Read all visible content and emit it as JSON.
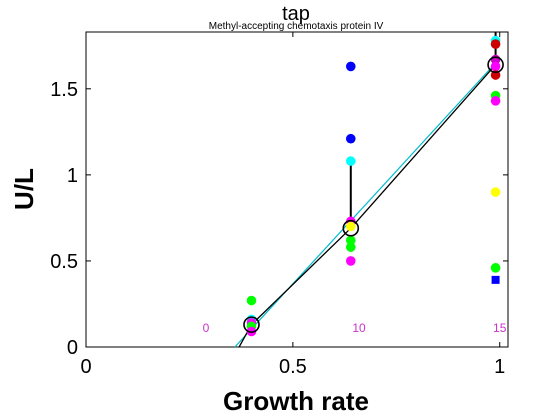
{
  "chart_data": {
    "type": "scatter",
    "title": "tap",
    "subtitle": "Methyl-accepting chemotaxis protein IV",
    "xlabel": "Growth rate",
    "ylabel": "U/L",
    "xlim": [
      0,
      1.02
    ],
    "ylim": [
      0,
      1.83
    ],
    "xticks": [
      {
        "value": 0,
        "label": "0"
      },
      {
        "value": 0.5,
        "label": "0.5"
      },
      {
        "value": 1,
        "label": "1"
      }
    ],
    "yticks": [
      {
        "value": 0,
        "label": "0"
      },
      {
        "value": 0.5,
        "label": "0.5"
      },
      {
        "value": 1,
        "label": "1"
      },
      {
        "value": 1.5,
        "label": "1.5"
      }
    ],
    "grid": false,
    "colors": {
      "blue": "#0000ff",
      "cyan": "#00ffff",
      "green": "#00ff00",
      "magenta": "#ff00ff",
      "yellow": "#ffff00",
      "red": "#cc0000",
      "purple": "#cc00cc",
      "fit_black": "#000000",
      "fit_cyan": "#00bbcc",
      "annotation": "#cc33cc"
    },
    "points": [
      {
        "x": 0.4,
        "y": 0.27,
        "color": "green"
      },
      {
        "x": 0.4,
        "y": 0.16,
        "color": "cyan"
      },
      {
        "x": 0.4,
        "y": 0.14,
        "color": "magenta"
      },
      {
        "x": 0.4,
        "y": 0.12,
        "color": "green"
      },
      {
        "x": 0.4,
        "y": 0.09,
        "color": "magenta"
      },
      {
        "x": 0.64,
        "y": 1.63,
        "color": "blue"
      },
      {
        "x": 0.64,
        "y": 1.21,
        "color": "blue"
      },
      {
        "x": 0.64,
        "y": 1.08,
        "color": "cyan"
      },
      {
        "x": 0.64,
        "y": 0.73,
        "color": "magenta"
      },
      {
        "x": 0.64,
        "y": 0.7,
        "color": "yellow"
      },
      {
        "x": 0.64,
        "y": 0.62,
        "color": "green"
      },
      {
        "x": 0.64,
        "y": 0.58,
        "color": "green"
      },
      {
        "x": 0.64,
        "y": 0.5,
        "color": "magenta"
      },
      {
        "x": 0.99,
        "y": 1.78,
        "color": "cyan"
      },
      {
        "x": 0.99,
        "y": 1.76,
        "color": "red"
      },
      {
        "x": 0.99,
        "y": 1.67,
        "color": "purple"
      },
      {
        "x": 0.99,
        "y": 1.63,
        "color": "magenta"
      },
      {
        "x": 0.99,
        "y": 1.58,
        "color": "red"
      },
      {
        "x": 0.99,
        "y": 1.46,
        "color": "green"
      },
      {
        "x": 0.99,
        "y": 1.43,
        "color": "magenta"
      },
      {
        "x": 0.99,
        "y": 0.9,
        "color": "yellow"
      },
      {
        "x": 0.99,
        "y": 0.46,
        "color": "green"
      },
      {
        "x": 0.99,
        "y": 0.39,
        "color": "blue",
        "marker": "square"
      }
    ],
    "means": [
      {
        "x": 0.4,
        "y": 0.13
      },
      {
        "x": 0.64,
        "y": 0.69
      },
      {
        "x": 0.99,
        "y": 1.64
      }
    ],
    "error_bars": [
      {
        "x": 0.4,
        "low": 0.1,
        "high": 0.16
      },
      {
        "x": 0.64,
        "low": 0.69,
        "high": 1.1
      },
      {
        "x": 0.99,
        "low": 1.64,
        "high": 1.83
      }
    ],
    "fit_line_black": [
      [
        0.37,
        0.0
      ],
      [
        0.4,
        0.13
      ],
      [
        0.64,
        0.69
      ],
      [
        0.99,
        1.64
      ]
    ],
    "fit_line_cyan": [
      [
        0.36,
        0.0
      ],
      [
        0.99,
        1.65
      ]
    ],
    "annotations": [
      {
        "x": 0.29,
        "y": 0.11,
        "text": "0"
      },
      {
        "x": 0.66,
        "y": 0.11,
        "text": "10"
      },
      {
        "x": 1.0,
        "y": 0.11,
        "text": "15"
      }
    ]
  }
}
